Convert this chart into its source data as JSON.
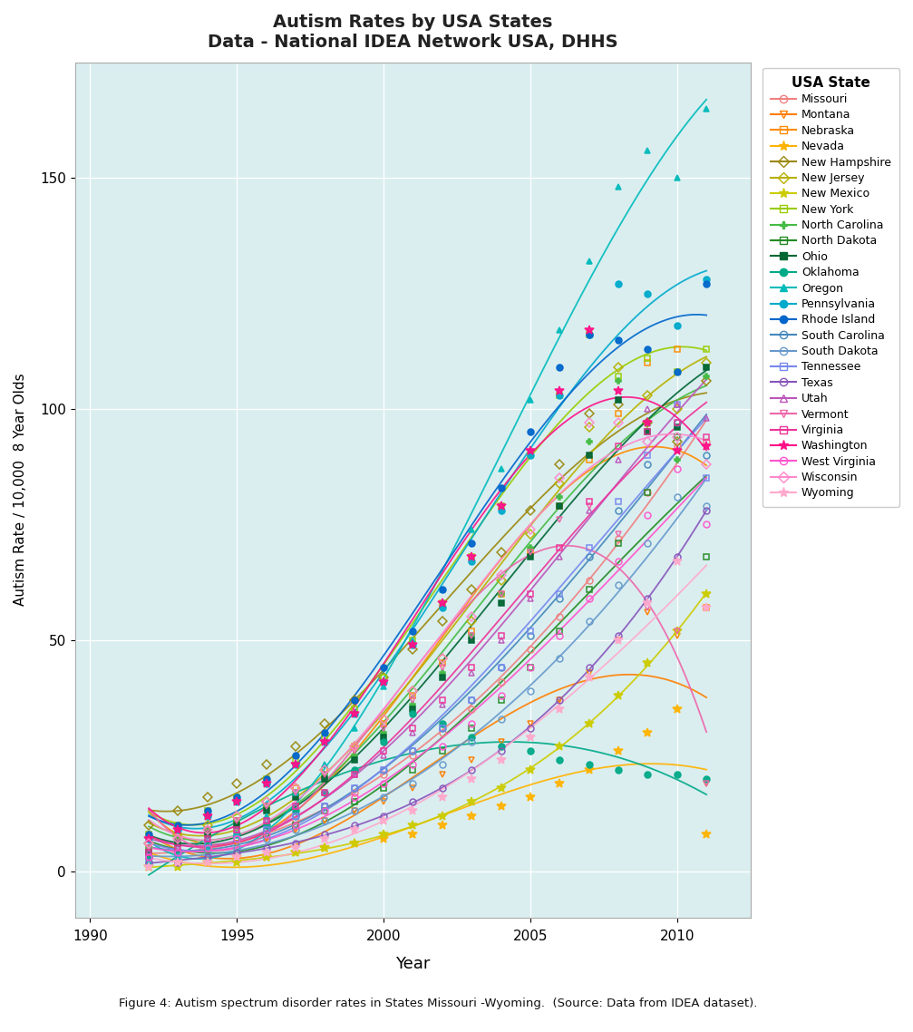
{
  "title": "Autism Rates by USA States",
  "subtitle": "Data - National IDEA Network USA, DHHS",
  "xlabel": "Year",
  "ylabel": "Autism Rate / 10,000  8 Year Olds",
  "caption": "Figure 4: Autism spectrum disorder rates in States Missouri -Wyoming.  (Source: Data from IDEA dataset).",
  "bg_color": "#daeef0",
  "xlim": [
    1989.5,
    2012.5
  ],
  "ylim": [
    -10,
    175
  ],
  "yticks": [
    0,
    50,
    100,
    150
  ],
  "xticks": [
    1990,
    1995,
    2000,
    2005,
    2010
  ],
  "states": [
    "Missouri",
    "Montana",
    "Nebraska",
    "Nevada",
    "New Hampshire",
    "New Jersey",
    "New Mexico",
    "New York",
    "North Carolina",
    "North Dakota",
    "Ohio",
    "Oklahoma",
    "Oregon",
    "Pennsylvania",
    "Rhode Island",
    "South Carolina",
    "South Dakota",
    "Tennessee",
    "Texas",
    "Utah",
    "Vermont",
    "Virginia",
    "Washington",
    "West Virginia",
    "Wisconsin",
    "Wyoming"
  ],
  "state_styles": {
    "Missouri": {
      "color": "#F08080",
      "marker": "o",
      "filled": false
    },
    "Montana": {
      "color": "#FF7F00",
      "marker": "v",
      "filled": false
    },
    "Nebraska": {
      "color": "#FF8C00",
      "marker": "s",
      "filled": false
    },
    "Nevada": {
      "color": "#FFB300",
      "marker": "*",
      "filled": true
    },
    "New Hampshire": {
      "color": "#9B870C",
      "marker": "D",
      "filled": false
    },
    "New Jersey": {
      "color": "#B8B000",
      "marker": "D",
      "filled": false
    },
    "New Mexico": {
      "color": "#CCCC00",
      "marker": "*",
      "filled": true
    },
    "New York": {
      "color": "#99CC00",
      "marker": "s",
      "filled": false
    },
    "North Carolina": {
      "color": "#44BB44",
      "marker": "P",
      "filled": true
    },
    "North Dakota": {
      "color": "#228B22",
      "marker": "s",
      "filled": false
    },
    "Ohio": {
      "color": "#006633",
      "marker": "s",
      "filled": true
    },
    "Oklahoma": {
      "color": "#00AA88",
      "marker": "o",
      "filled": true
    },
    "Oregon": {
      "color": "#00BBBB",
      "marker": "^",
      "filled": true
    },
    "Pennsylvania": {
      "color": "#00AACC",
      "marker": "o",
      "filled": true
    },
    "Rhode Island": {
      "color": "#0066CC",
      "marker": "o",
      "filled": true
    },
    "South Carolina": {
      "color": "#4488BB",
      "marker": "o",
      "filled": false
    },
    "South Dakota": {
      "color": "#6699CC",
      "marker": "o",
      "filled": false
    },
    "Tennessee": {
      "color": "#7788EE",
      "marker": "s",
      "filled": false
    },
    "Texas": {
      "color": "#8855BB",
      "marker": "o",
      "filled": false
    },
    "Utah": {
      "color": "#BB55BB",
      "marker": "^",
      "filled": false
    },
    "Vermont": {
      "color": "#EE66AA",
      "marker": "v",
      "filled": false
    },
    "Virginia": {
      "color": "#EE3399",
      "marker": "s",
      "filled": false
    },
    "Washington": {
      "color": "#FF1188",
      "marker": "*",
      "filled": true
    },
    "West Virginia": {
      "color": "#FF55CC",
      "marker": "o",
      "filled": false
    },
    "Wisconsin": {
      "color": "#FF88CC",
      "marker": "D",
      "filled": false
    },
    "Wyoming": {
      "color": "#FFAACC",
      "marker": "*",
      "filled": true
    }
  },
  "series": {
    "Missouri": [
      1992,
      3,
      1993,
      4,
      1994,
      5,
      1995,
      7,
      1996,
      9,
      1997,
      11,
      1998,
      14,
      1999,
      17,
      2000,
      21,
      2001,
      25,
      2002,
      30,
      2003,
      35,
      2004,
      41,
      2005,
      48,
      2006,
      55,
      2007,
      63,
      2008,
      72,
      2009,
      82,
      2010,
      92,
      2011,
      93
    ],
    "Montana": [
      1992,
      3,
      1993,
      4,
      1994,
      5,
      1995,
      6,
      1996,
      7,
      1997,
      9,
      1998,
      11,
      1999,
      13,
      2000,
      15,
      2001,
      18,
      2002,
      21,
      2003,
      24,
      2004,
      28,
      2005,
      32,
      2006,
      37,
      2007,
      43,
      2008,
      50,
      2009,
      56,
      2010,
      51,
      2011,
      19
    ],
    "Nebraska": [
      1992,
      5,
      1993,
      7,
      1994,
      9,
      1995,
      11,
      1996,
      14,
      1997,
      18,
      1998,
      22,
      1999,
      27,
      2000,
      32,
      2001,
      38,
      2002,
      45,
      2003,
      52,
      2004,
      60,
      2005,
      69,
      2006,
      79,
      2007,
      89,
      2008,
      99,
      2009,
      110,
      2010,
      113,
      2011,
      57
    ],
    "Nevada": [
      1992,
      1,
      1993,
      2,
      1994,
      2,
      1995,
      3,
      1996,
      3,
      1997,
      4,
      1998,
      5,
      1999,
      6,
      2000,
      7,
      2001,
      8,
      2002,
      10,
      2003,
      12,
      2004,
      14,
      2005,
      16,
      2006,
      19,
      2007,
      22,
      2008,
      26,
      2009,
      30,
      2010,
      35,
      2011,
      8
    ],
    "New Hampshire": [
      1992,
      10,
      1993,
      13,
      1994,
      16,
      1995,
      19,
      1996,
      23,
      1997,
      27,
      1998,
      32,
      1999,
      37,
      2000,
      42,
      2001,
      48,
      2002,
      54,
      2003,
      61,
      2004,
      69,
      2005,
      78,
      2006,
      88,
      2007,
      99,
      2008,
      101,
      2009,
      97,
      2010,
      93,
      2011,
      106
    ],
    "New Jersey": [
      1992,
      6,
      1993,
      8,
      1994,
      10,
      1995,
      12,
      1996,
      15,
      1997,
      18,
      1998,
      22,
      1999,
      27,
      2000,
      33,
      2001,
      39,
      2002,
      46,
      2003,
      54,
      2004,
      63,
      2005,
      73,
      2006,
      84,
      2007,
      96,
      2008,
      109,
      2009,
      103,
      2010,
      100,
      2011,
      110
    ],
    "New Mexico": [
      1992,
      1,
      1993,
      1,
      1994,
      2,
      1995,
      2,
      1996,
      3,
      1997,
      4,
      1998,
      5,
      1999,
      6,
      2000,
      8,
      2001,
      10,
      2002,
      12,
      2003,
      15,
      2004,
      18,
      2005,
      22,
      2006,
      27,
      2007,
      32,
      2008,
      38,
      2009,
      45,
      2010,
      52,
      2011,
      60
    ],
    "New York": [
      1992,
      8,
      1993,
      10,
      1994,
      13,
      1995,
      16,
      1996,
      20,
      1997,
      24,
      1998,
      29,
      1999,
      35,
      2000,
      42,
      2001,
      50,
      2002,
      58,
      2003,
      68,
      2004,
      79,
      2005,
      90,
      2006,
      103,
      2007,
      116,
      2008,
      107,
      2009,
      111,
      2010,
      108,
      2011,
      113
    ],
    "North Carolina": [
      1992,
      5,
      1993,
      7,
      1994,
      9,
      1995,
      11,
      1996,
      14,
      1997,
      17,
      1998,
      21,
      1999,
      25,
      2000,
      30,
      2001,
      36,
      2002,
      43,
      2003,
      51,
      2004,
      60,
      2005,
      70,
      2006,
      81,
      2007,
      93,
      2008,
      106,
      2009,
      97,
      2010,
      89,
      2011,
      107
    ],
    "North Dakota": [
      1992,
      3,
      1993,
      4,
      1994,
      5,
      1995,
      7,
      1996,
      8,
      1997,
      10,
      1998,
      13,
      1999,
      15,
      2000,
      18,
      2001,
      22,
      2002,
      26,
      2003,
      31,
      2004,
      37,
      2005,
      44,
      2006,
      52,
      2007,
      61,
      2008,
      71,
      2009,
      82,
      2010,
      94,
      2011,
      68
    ],
    "Ohio": [
      1992,
      4,
      1993,
      6,
      1994,
      8,
      1995,
      10,
      1996,
      13,
      1997,
      16,
      1998,
      20,
      1999,
      24,
      2000,
      29,
      2001,
      35,
      2002,
      42,
      2003,
      50,
      2004,
      58,
      2005,
      68,
      2006,
      79,
      2007,
      90,
      2008,
      102,
      2009,
      95,
      2010,
      96,
      2011,
      109
    ],
    "Oklahoma": [
      1992,
      3,
      1993,
      4,
      1994,
      6,
      1995,
      8,
      1996,
      10,
      1997,
      13,
      1998,
      17,
      1999,
      22,
      2000,
      28,
      2001,
      34,
      2002,
      32,
      2003,
      29,
      2004,
      27,
      2005,
      26,
      2006,
      24,
      2007,
      23,
      2008,
      22,
      2009,
      21,
      2010,
      21,
      2011,
      20
    ],
    "Oregon": [
      1992,
      2,
      1993,
      3,
      1994,
      5,
      1995,
      8,
      1996,
      12,
      1997,
      17,
      1998,
      23,
      1999,
      31,
      2000,
      40,
      2001,
      50,
      2002,
      61,
      2003,
      74,
      2004,
      87,
      2005,
      102,
      2006,
      117,
      2007,
      132,
      2008,
      148,
      2009,
      156,
      2010,
      150,
      2011,
      165
    ],
    "Pennsylvania": [
      1992,
      7,
      1993,
      9,
      1994,
      12,
      1995,
      15,
      1996,
      19,
      1997,
      23,
      1998,
      28,
      1999,
      34,
      2000,
      41,
      2001,
      49,
      2002,
      57,
      2003,
      67,
      2004,
      78,
      2005,
      90,
      2006,
      103,
      2007,
      116,
      2008,
      127,
      2009,
      125,
      2010,
      118,
      2011,
      128
    ],
    "Rhode Island": [
      1992,
      8,
      1993,
      10,
      1994,
      13,
      1995,
      16,
      1996,
      20,
      1997,
      25,
      1998,
      30,
      1999,
      37,
      2000,
      44,
      2001,
      52,
      2002,
      61,
      2003,
      71,
      2004,
      83,
      2005,
      95,
      2006,
      109,
      2007,
      116,
      2008,
      115,
      2009,
      113,
      2010,
      108,
      2011,
      127
    ],
    "South Carolina": [
      1992,
      3,
      1993,
      4,
      1994,
      6,
      1995,
      7,
      1996,
      9,
      1997,
      12,
      1998,
      14,
      1999,
      18,
      2000,
      22,
      2001,
      26,
      2002,
      31,
      2003,
      37,
      2004,
      44,
      2005,
      51,
      2006,
      59,
      2007,
      68,
      2008,
      78,
      2009,
      88,
      2010,
      97,
      2011,
      90
    ],
    "South Dakota": [
      1992,
      2,
      1993,
      3,
      1994,
      4,
      1995,
      5,
      1996,
      7,
      1997,
      9,
      1998,
      11,
      1999,
      13,
      2000,
      16,
      2001,
      19,
      2002,
      23,
      2003,
      28,
      2004,
      33,
      2005,
      39,
      2006,
      46,
      2007,
      54,
      2008,
      62,
      2009,
      71,
      2010,
      81,
      2011,
      79
    ],
    "Tennessee": [
      1992,
      3,
      1993,
      4,
      1994,
      6,
      1995,
      7,
      1996,
      9,
      1997,
      12,
      1998,
      14,
      1999,
      18,
      2000,
      22,
      2001,
      26,
      2002,
      31,
      2003,
      37,
      2004,
      44,
      2005,
      52,
      2006,
      60,
      2007,
      70,
      2008,
      80,
      2009,
      90,
      2010,
      101,
      2011,
      85
    ],
    "Texas": [
      1992,
      2,
      1993,
      2,
      1994,
      3,
      1995,
      4,
      1996,
      5,
      1997,
      6,
      1998,
      8,
      1999,
      10,
      2000,
      12,
      2001,
      15,
      2002,
      18,
      2003,
      22,
      2004,
      26,
      2005,
      31,
      2006,
      37,
      2007,
      44,
      2008,
      51,
      2009,
      59,
      2010,
      68,
      2011,
      78
    ],
    "Utah": [
      1992,
      4,
      1993,
      5,
      1994,
      7,
      1995,
      9,
      1996,
      11,
      1997,
      14,
      1998,
      17,
      1999,
      21,
      2000,
      25,
      2001,
      30,
      2002,
      36,
      2003,
      43,
      2004,
      50,
      2005,
      59,
      2006,
      68,
      2007,
      78,
      2008,
      89,
      2009,
      100,
      2010,
      101,
      2011,
      98
    ],
    "Vermont": [
      1992,
      5,
      1993,
      7,
      1994,
      9,
      1995,
      11,
      1996,
      14,
      1997,
      17,
      1998,
      21,
      1999,
      26,
      2000,
      31,
      2001,
      37,
      2002,
      44,
      2003,
      51,
      2004,
      60,
      2005,
      69,
      2006,
      76,
      2007,
      79,
      2008,
      73,
      2009,
      57,
      2010,
      52,
      2011,
      19
    ],
    "Virginia": [
      1992,
      4,
      1993,
      5,
      1994,
      7,
      1995,
      9,
      1996,
      11,
      1997,
      14,
      1998,
      17,
      1999,
      21,
      2000,
      26,
      2001,
      31,
      2002,
      37,
      2003,
      44,
      2004,
      51,
      2005,
      60,
      2006,
      70,
      2007,
      80,
      2008,
      92,
      2009,
      95,
      2010,
      97,
      2011,
      94
    ],
    "Washington": [
      1992,
      7,
      1993,
      9,
      1994,
      12,
      1995,
      15,
      1996,
      19,
      1997,
      23,
      1998,
      28,
      1999,
      34,
      2000,
      41,
      2001,
      49,
      2002,
      58,
      2003,
      68,
      2004,
      79,
      2005,
      91,
      2006,
      104,
      2007,
      117,
      2008,
      104,
      2009,
      97,
      2010,
      91,
      2011,
      92
    ],
    "West Virginia": [
      1992,
      3,
      1993,
      4,
      1994,
      5,
      1995,
      7,
      1996,
      8,
      1997,
      10,
      1998,
      13,
      1999,
      16,
      2000,
      19,
      2001,
      23,
      2002,
      27,
      2003,
      32,
      2004,
      38,
      2005,
      44,
      2006,
      51,
      2007,
      59,
      2008,
      67,
      2009,
      77,
      2010,
      87,
      2011,
      75
    ],
    "Wisconsin": [
      1992,
      6,
      1993,
      7,
      1994,
      9,
      1995,
      12,
      1996,
      15,
      1997,
      18,
      1998,
      22,
      1999,
      27,
      2000,
      33,
      2001,
      39,
      2002,
      46,
      2003,
      55,
      2004,
      64,
      2005,
      74,
      2006,
      85,
      2007,
      97,
      2008,
      97,
      2009,
      93,
      2010,
      94,
      2011,
      88
    ],
    "Wyoming": [
      1992,
      1,
      1993,
      2,
      1994,
      2,
      1995,
      3,
      1996,
      4,
      1997,
      5,
      1998,
      7,
      1999,
      9,
      2000,
      11,
      2001,
      13,
      2002,
      16,
      2003,
      20,
      2004,
      24,
      2005,
      29,
      2006,
      35,
      2007,
      42,
      2008,
      50,
      2009,
      58,
      2010,
      67,
      2011,
      57
    ]
  }
}
